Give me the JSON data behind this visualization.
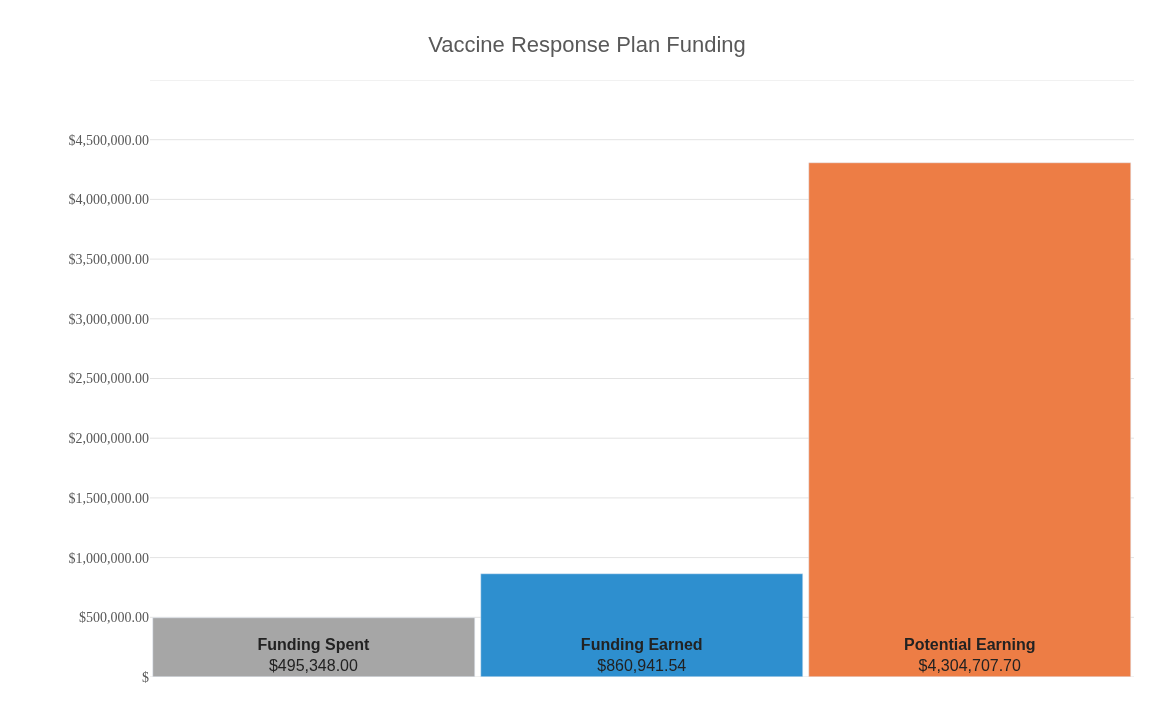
{
  "chart_data": {
    "type": "bar",
    "title": "Vaccine Response Plan Funding",
    "categories": [
      "Funding Spent",
      "Funding Earned",
      "Potential Earning"
    ],
    "values": [
      495348.0,
      860941.54,
      4304707.7
    ],
    "colors": [
      "#a6a6a6",
      "#2e8fcf",
      "#ed7d45"
    ],
    "value_labels": [
      "$495,348.00",
      "$860,941.54",
      "$4,304,707.70"
    ],
    "ylim": [
      0,
      5000000
    ],
    "yticks": [
      {
        "value": 0,
        "label": "$"
      },
      {
        "value": 500000,
        "label": "$500,000.00"
      },
      {
        "value": 1000000,
        "label": "$1,000,000.00"
      },
      {
        "value": 1500000,
        "label": "$1,500,000.00"
      },
      {
        "value": 2000000,
        "label": "$2,000,000.00"
      },
      {
        "value": 2500000,
        "label": "$2,500,000.00"
      },
      {
        "value": 3000000,
        "label": "$3,000,000.00"
      },
      {
        "value": 3500000,
        "label": "$3,500,000.00"
      },
      {
        "value": 4000000,
        "label": "$4,000,000.00"
      },
      {
        "value": 4500000,
        "label": "$4,500,000.00"
      },
      {
        "value": 5000000,
        "label": null
      }
    ],
    "grid": "y",
    "tick_labels": "y",
    "legend": false
  }
}
